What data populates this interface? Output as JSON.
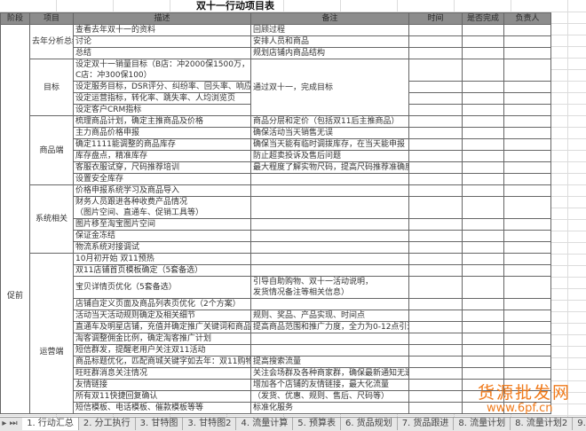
{
  "title": "双十一行动项目表",
  "headers": [
    "阶段",
    "项目",
    "描述",
    "备注",
    "时间",
    "是否完成",
    "负责人"
  ],
  "stage": "促前",
  "groups": [
    {
      "project": "去年分析总结",
      "rows": [
        {
          "desc": "查看去年双十一的资料",
          "note": "回顾过程"
        },
        {
          "desc": "讨论",
          "note": "安排人员和商品"
        },
        {
          "desc": "总结",
          "note": "规划店铺内商品结构"
        }
      ]
    },
    {
      "project": "目标",
      "rows": [
        {
          "desc": "设定双十一销量目标（B店：冲2000保1500万，\nC店：冲300保100）",
          "note": "通过双十一，完成目标",
          "note_span": 4
        },
        {
          "desc": "设定服务目标，DSR评分、纠纷率、回头率、响应率"
        },
        {
          "desc": "设定运营指标，转化率、跳失率、人均浏览页"
        },
        {
          "desc": "设定客户CRM指标"
        }
      ]
    },
    {
      "project": "商品端",
      "rows": [
        {
          "desc": "梳理商品计划，确定主推商品及价格",
          "note": "商品分层和定价（包括双11后主推商品）"
        },
        {
          "desc": "主力商品价格申报",
          "note": "确保活动当天销售无误"
        },
        {
          "desc": "确定1111能调整的商品库存",
          "note": "确保当天能有临时调拨库存，在当天能申报"
        },
        {
          "desc": "库存盘点，精准库存",
          "note": "防止超卖投诉及售后问题"
        },
        {
          "desc": "客服衣服试穿，尺码推荐培训",
          "note": "最大程度了解实物尺码，提高尺码推荐准确度"
        },
        {
          "desc": "设置安全库存",
          "note": ""
        }
      ]
    },
    {
      "project": "系统相关",
      "rows": [
        {
          "desc": "价格申报系统学习及商品导入",
          "note": ""
        },
        {
          "desc": "财务人员跟进各种收费产品情况\n（图片空间、直通车、促销工具等）",
          "note": ""
        },
        {
          "desc": "图片移至淘宝图片空间",
          "note": ""
        },
        {
          "desc": "保证金冻结",
          "note": ""
        },
        {
          "desc": "物流系统对接调试",
          "note": ""
        }
      ]
    },
    {
      "project": "运营端",
      "top": true,
      "rows": [
        {
          "desc": "10月初开始 双11预热",
          "note": ""
        },
        {
          "desc": "双11店铺首页模板确定（5套备选）",
          "note": ""
        },
        {
          "desc": "宝贝详情页优化（5套备选）",
          "note": "引导自助购物、双十一活动说明，\n发货情况备注等相关信息）"
        },
        {
          "desc": "店铺自定义页面及商品列表页优化（2个方案）",
          "note": ""
        },
        {
          "desc": "活动当天活动规则确定及相关细节",
          "note": "规则、奖品、产品实现、时间点"
        },
        {
          "desc": "直通车及明星店铺，充值并确定推广关键词和商品，",
          "note": "提高商品范围和推广力度，全力为0-12点引流"
        },
        {
          "desc": "淘客调整佣金比例，确定淘客推广计划",
          "note": ""
        },
        {
          "desc": "短信群发，提醒老用户关注双11活动",
          "note": ""
        },
        {
          "desc": "商品标题优化，匹配商城关键字如去年：双11购物狂欢节",
          "note": "提高搜索流量"
        },
        {
          "desc": "旺旺群消息关注情况",
          "note": "关注会场群及各种商家群，确保最新通知无遗漏"
        },
        {
          "desc": "友情链接",
          "note": "增加各个店铺的友情链接，最大化流量"
        },
        {
          "desc": "所有双11快捷回复确认",
          "note": "（发货、优惠、规则、售后、尺码等）"
        },
        {
          "desc": "短信模板、电话模板、催款模板等等",
          "note": "标准化服务"
        }
      ]
    }
  ],
  "sheet_tabs": [
    "1. 行动汇总",
    "2. 分工执行",
    "3. 甘特图",
    "3. 甘特图2",
    "4. 流量计算",
    "5. 预算表",
    "6. 货品规划",
    "7. 货品跟进",
    "8. 流量计划",
    "8. 流量计划2",
    "9. 素材准备",
    "10. 整"
  ],
  "active_tab": 0,
  "watermark": {
    "line1": "货源批发网",
    "line2": "www.6pf.cn",
    "color": "#f07a1a"
  }
}
